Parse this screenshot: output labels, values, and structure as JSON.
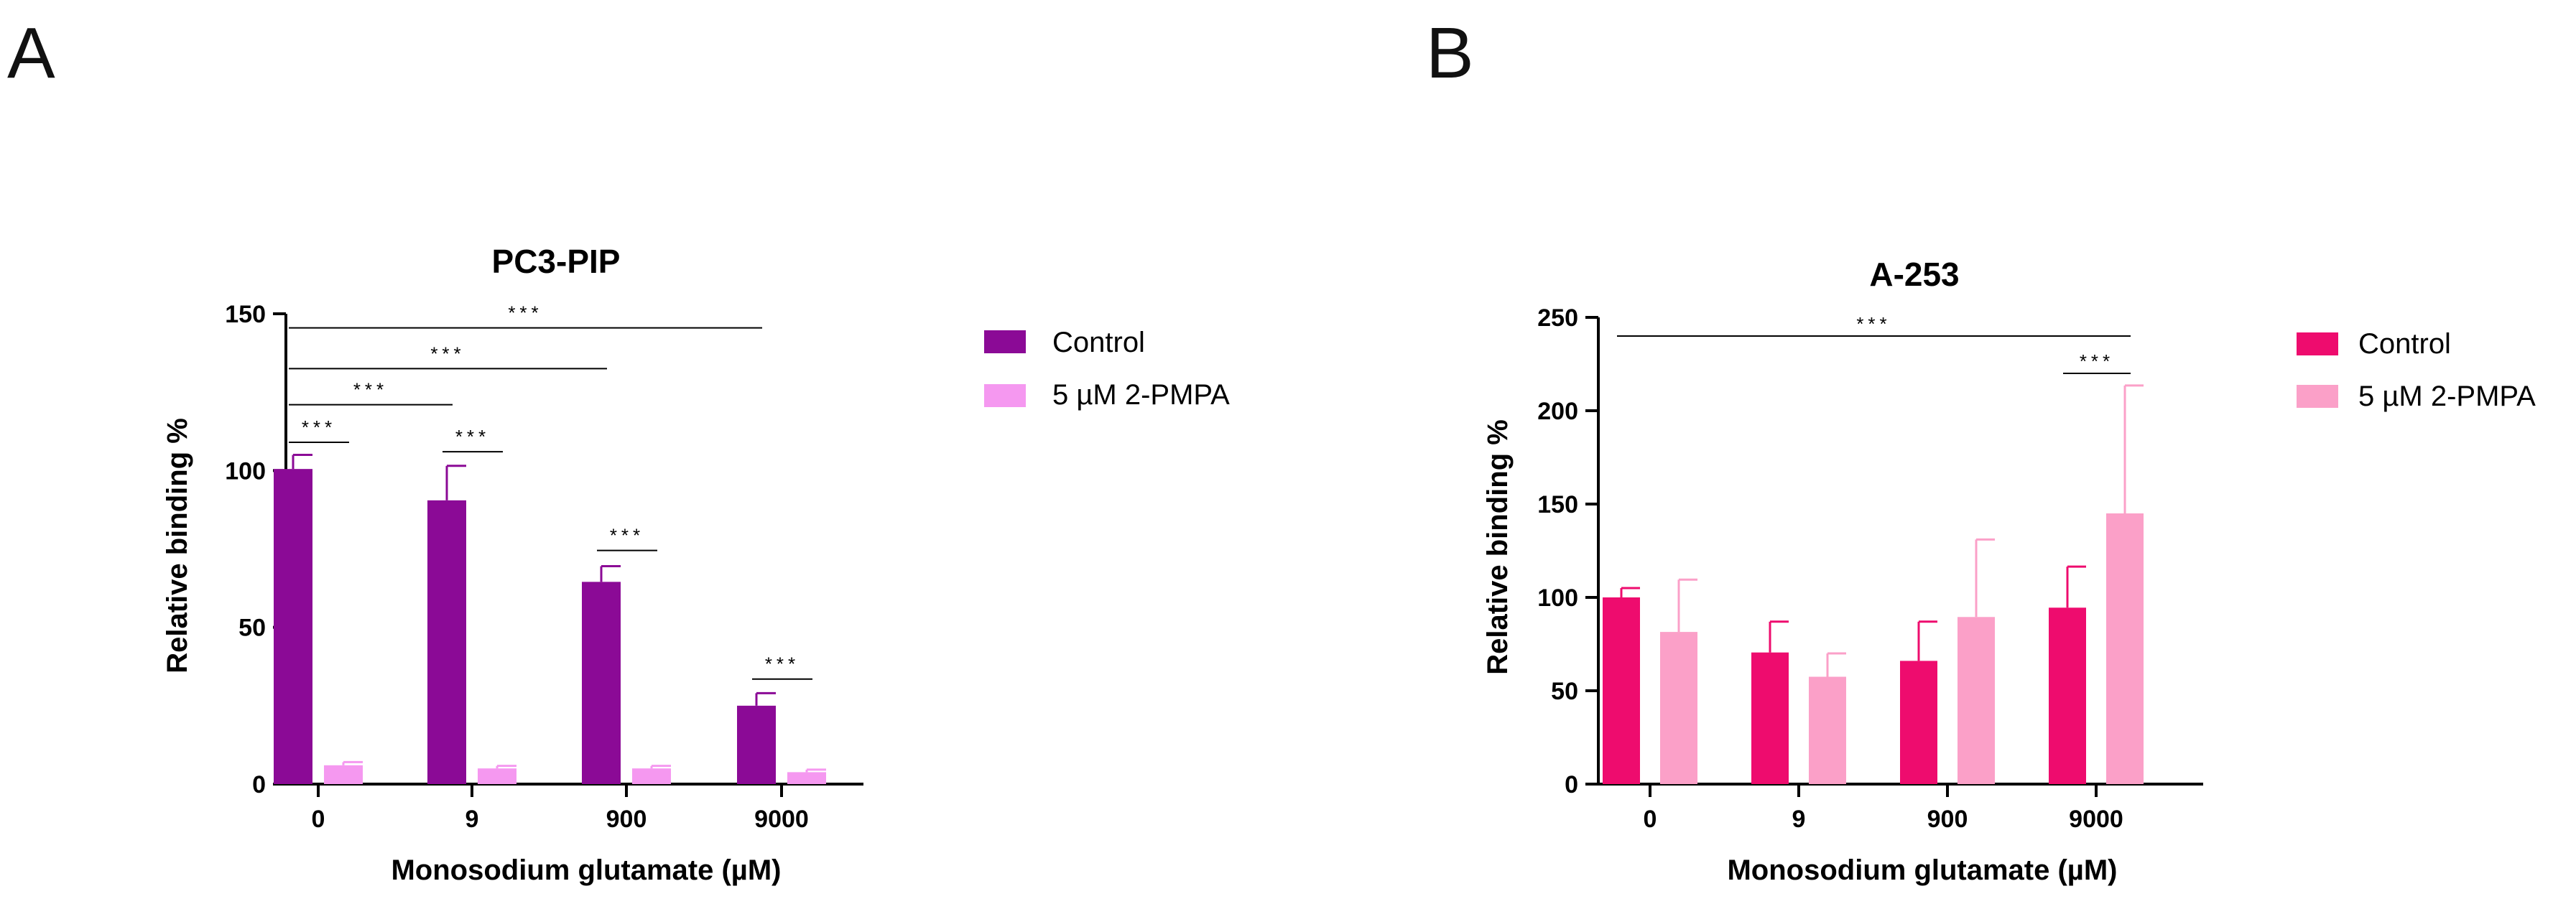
{
  "chart_data": [
    {
      "panel": "A",
      "type": "bar",
      "title": "PC3-PIP",
      "xlabel": "Monosodium glutamate (µM)",
      "ylabel": "Relative binding %",
      "ylim": [
        0,
        150
      ],
      "yticks": [
        0,
        50,
        100,
        150
      ],
      "categories": [
        "0",
        "9",
        "900",
        "9000"
      ],
      "series": [
        {
          "name": "Control",
          "color": "#8b0a96",
          "values": [
            100.5,
            90.5,
            64.5,
            25
          ],
          "errors": [
            4.5,
            11,
            5,
            4
          ]
        },
        {
          "name": "5 µM 2-PMPA",
          "color": "#f598f0",
          "values": [
            6,
            5,
            5,
            3.8
          ],
          "errors": [
            1,
            0.8,
            0.8,
            0.8
          ]
        }
      ],
      "legend_position": "right",
      "significance": [
        {
          "from": 0,
          "from_series": 0,
          "to": 3,
          "to_series": 0,
          "level": 145.5,
          "label": "***"
        },
        {
          "from": 0,
          "from_series": 0,
          "to": 2,
          "to_series": 0,
          "level": 132.5,
          "label": "***"
        },
        {
          "from": 0,
          "from_series": 0,
          "to": 1,
          "to_series": 0,
          "level": 121,
          "label": "***"
        },
        {
          "from": 0,
          "from_series": 0,
          "to": 0,
          "to_series": 1,
          "level": 109,
          "label": "***"
        },
        {
          "from": 1,
          "from_series": 0,
          "to": 1,
          "to_series": 1,
          "level": 106,
          "label": "***"
        },
        {
          "from": 2,
          "from_series": 0,
          "to": 2,
          "to_series": 1,
          "level": 74.5,
          "label": "***"
        },
        {
          "from": 3,
          "from_series": 0,
          "to": 3,
          "to_series": 1,
          "level": 33.5,
          "label": "***"
        }
      ]
    },
    {
      "panel": "B",
      "type": "bar",
      "title": "A-253",
      "xlabel": "Monosodium glutamate (µM)",
      "ylabel": "Relative binding %",
      "ylim": [
        0,
        250
      ],
      "yticks": [
        0,
        50,
        100,
        150,
        200,
        250
      ],
      "categories": [
        "0",
        "9",
        "900",
        "9000"
      ],
      "series": [
        {
          "name": "Control",
          "color": "#ee0c6e",
          "values": [
            100,
            70.5,
            66,
            94.5
          ],
          "errors": [
            5,
            16.5,
            21,
            22
          ]
        },
        {
          "name": "5 µM 2-PMPA",
          "color": "#fba0c8",
          "values": [
            81.5,
            57.5,
            89.5,
            145
          ],
          "errors": [
            28,
            12.5,
            41.5,
            68.5
          ]
        }
      ],
      "legend_position": "right",
      "significance": [
        {
          "from": 0,
          "from_series": 0,
          "to": 3,
          "to_series": 1,
          "level": 240,
          "label": "***"
        },
        {
          "from": 3,
          "from_series": 0,
          "to": 3,
          "to_series": 1,
          "level": 220,
          "label": "***"
        }
      ]
    }
  ]
}
